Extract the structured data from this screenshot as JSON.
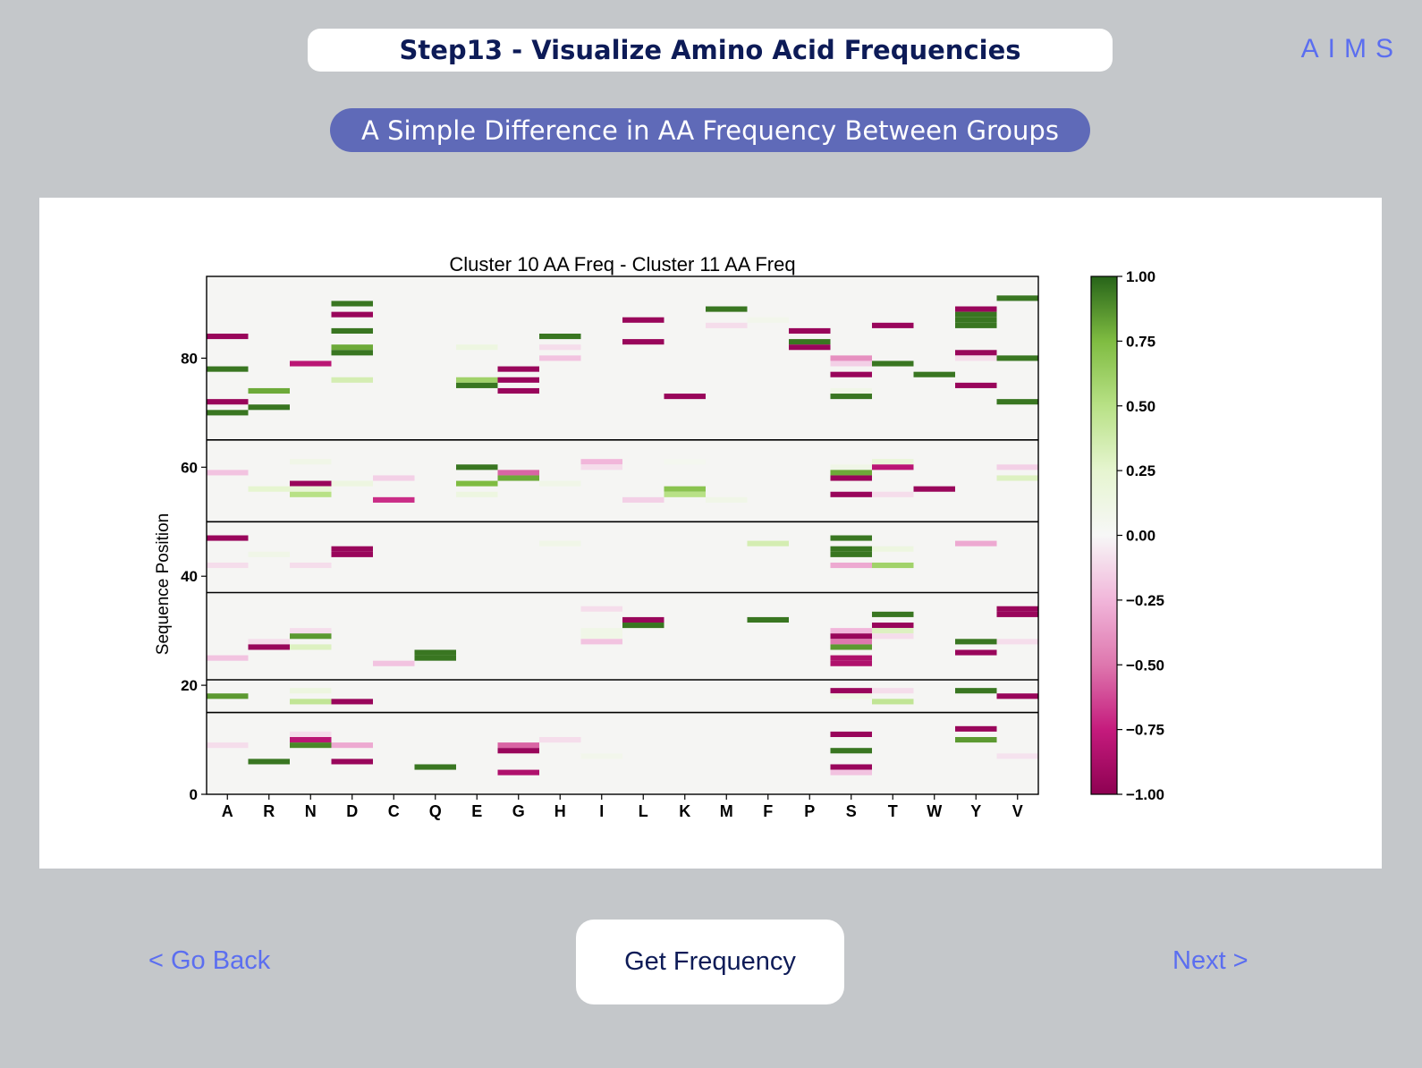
{
  "header": {
    "step_title": "Step13 - Visualize Amino Acid Frequencies",
    "logo_text": "AIMS"
  },
  "subtitle": "A Simple Difference in AA Frequency Between Groups",
  "chart_data": {
    "type": "heatmap",
    "title": "Cluster 10 AA Freq - Cluster 11 AA Freq",
    "xlabel": "",
    "ylabel": "Sequence Position",
    "categories": [
      "A",
      "R",
      "N",
      "D",
      "C",
      "Q",
      "E",
      "G",
      "H",
      "I",
      "L",
      "K",
      "M",
      "F",
      "P",
      "S",
      "T",
      "W",
      "Y",
      "V"
    ],
    "ylim": [
      0,
      95
    ],
    "yticks": [
      0,
      20,
      40,
      60,
      80
    ],
    "region_boundaries": [
      15,
      21,
      37,
      50,
      65
    ],
    "colormap": "PiYG",
    "colorbar": {
      "range": [
        -1.0,
        1.0
      ],
      "ticks": [
        "1.00",
        "0.75",
        "0.50",
        "0.25",
        "0.00",
        "−0.25",
        "−0.50",
        "−0.75",
        "−1.00"
      ]
    },
    "cells": [
      {
        "aa": "A",
        "pos": 84,
        "v": -0.95
      },
      {
        "aa": "A",
        "pos": 78,
        "v": 0.95
      },
      {
        "aa": "A",
        "pos": 72,
        "v": -0.95
      },
      {
        "aa": "A",
        "pos": 70,
        "v": 0.95
      },
      {
        "aa": "A",
        "pos": 59,
        "v": -0.2
      },
      {
        "aa": "A",
        "pos": 47,
        "v": -0.95
      },
      {
        "aa": "A",
        "pos": 42,
        "v": -0.1
      },
      {
        "aa": "A",
        "pos": 25,
        "v": -0.2
      },
      {
        "aa": "A",
        "pos": 18,
        "v": 0.85
      },
      {
        "aa": "A",
        "pos": 9,
        "v": -0.1
      },
      {
        "aa": "R",
        "pos": 74,
        "v": 0.8
      },
      {
        "aa": "R",
        "pos": 71,
        "v": 0.95
      },
      {
        "aa": "R",
        "pos": 56,
        "v": 0.25
      },
      {
        "aa": "R",
        "pos": 44,
        "v": 0.1
      },
      {
        "aa": "R",
        "pos": 28,
        "v": -0.1
      },
      {
        "aa": "R",
        "pos": 27,
        "v": -0.95
      },
      {
        "aa": "R",
        "pos": 6,
        "v": 0.95
      },
      {
        "aa": "N",
        "pos": 79,
        "v": -0.8
      },
      {
        "aa": "N",
        "pos": 61,
        "v": 0.1
      },
      {
        "aa": "N",
        "pos": 57,
        "v": -0.95
      },
      {
        "aa": "N",
        "pos": 56,
        "v": 0.2
      },
      {
        "aa": "N",
        "pos": 55,
        "v": 0.5
      },
      {
        "aa": "N",
        "pos": 42,
        "v": -0.1
      },
      {
        "aa": "N",
        "pos": 30,
        "v": -0.1
      },
      {
        "aa": "N",
        "pos": 29,
        "v": 0.85
      },
      {
        "aa": "N",
        "pos": 27,
        "v": 0.3
      },
      {
        "aa": "N",
        "pos": 19,
        "v": 0.15
      },
      {
        "aa": "N",
        "pos": 17,
        "v": 0.45
      },
      {
        "aa": "N",
        "pos": 11,
        "v": -0.1
      },
      {
        "aa": "N",
        "pos": 10,
        "v": -0.8
      },
      {
        "aa": "N",
        "pos": 9,
        "v": 0.9
      },
      {
        "aa": "D",
        "pos": 90,
        "v": 0.95
      },
      {
        "aa": "D",
        "pos": 88,
        "v": -0.95
      },
      {
        "aa": "D",
        "pos": 85,
        "v": 0.95
      },
      {
        "aa": "D",
        "pos": 82,
        "v": 0.8
      },
      {
        "aa": "D",
        "pos": 81,
        "v": 0.95
      },
      {
        "aa": "D",
        "pos": 76,
        "v": 0.35
      },
      {
        "aa": "D",
        "pos": 57,
        "v": 0.15
      },
      {
        "aa": "D",
        "pos": 45,
        "v": -0.95
      },
      {
        "aa": "D",
        "pos": 44,
        "v": -0.95
      },
      {
        "aa": "D",
        "pos": 17,
        "v": -0.95
      },
      {
        "aa": "D",
        "pos": 9,
        "v": -0.3
      },
      {
        "aa": "D",
        "pos": 6,
        "v": -0.95
      },
      {
        "aa": "C",
        "pos": 58,
        "v": -0.15
      },
      {
        "aa": "C",
        "pos": 54,
        "v": -0.7
      },
      {
        "aa": "C",
        "pos": 24,
        "v": -0.2
      },
      {
        "aa": "Q",
        "pos": 26,
        "v": 0.95
      },
      {
        "aa": "Q",
        "pos": 25,
        "v": 0.95
      },
      {
        "aa": "Q",
        "pos": 5,
        "v": 0.95
      },
      {
        "aa": "E",
        "pos": 82,
        "v": 0.15
      },
      {
        "aa": "E",
        "pos": 76,
        "v": 0.6
      },
      {
        "aa": "E",
        "pos": 75,
        "v": 0.95
      },
      {
        "aa": "E",
        "pos": 60,
        "v": 0.95
      },
      {
        "aa": "E",
        "pos": 57,
        "v": 0.75
      },
      {
        "aa": "E",
        "pos": 55,
        "v": 0.15
      },
      {
        "aa": "G",
        "pos": 78,
        "v": -0.95
      },
      {
        "aa": "G",
        "pos": 76,
        "v": -0.95
      },
      {
        "aa": "G",
        "pos": 74,
        "v": -0.95
      },
      {
        "aa": "G",
        "pos": 59,
        "v": -0.55
      },
      {
        "aa": "G",
        "pos": 58,
        "v": 0.8
      },
      {
        "aa": "G",
        "pos": 9,
        "v": -0.55
      },
      {
        "aa": "G",
        "pos": 8,
        "v": -0.95
      },
      {
        "aa": "G",
        "pos": 4,
        "v": -0.85
      },
      {
        "aa": "H",
        "pos": 84,
        "v": 0.95
      },
      {
        "aa": "H",
        "pos": 82,
        "v": -0.1
      },
      {
        "aa": "H",
        "pos": 80,
        "v": -0.2
      },
      {
        "aa": "H",
        "pos": 57,
        "v": 0.1
      },
      {
        "aa": "H",
        "pos": 46,
        "v": 0.1
      },
      {
        "aa": "H",
        "pos": 10,
        "v": -0.1
      },
      {
        "aa": "I",
        "pos": 61,
        "v": -0.25
      },
      {
        "aa": "I",
        "pos": 60,
        "v": -0.1
      },
      {
        "aa": "I",
        "pos": 34,
        "v": -0.1
      },
      {
        "aa": "I",
        "pos": 30,
        "v": 0.1
      },
      {
        "aa": "I",
        "pos": 29,
        "v": 0.1
      },
      {
        "aa": "I",
        "pos": 28,
        "v": -0.2
      },
      {
        "aa": "I",
        "pos": 7,
        "v": 0.08
      },
      {
        "aa": "L",
        "pos": 87,
        "v": -0.95
      },
      {
        "aa": "L",
        "pos": 83,
        "v": -0.95
      },
      {
        "aa": "L",
        "pos": 54,
        "v": -0.15
      },
      {
        "aa": "L",
        "pos": 32,
        "v": -0.95
      },
      {
        "aa": "L",
        "pos": 31,
        "v": 0.95
      },
      {
        "aa": "K",
        "pos": 73,
        "v": -0.95
      },
      {
        "aa": "K",
        "pos": 61,
        "v": 0.05
      },
      {
        "aa": "K",
        "pos": 56,
        "v": 0.7
      },
      {
        "aa": "K",
        "pos": 55,
        "v": 0.5
      },
      {
        "aa": "M",
        "pos": 89,
        "v": 0.95
      },
      {
        "aa": "M",
        "pos": 86,
        "v": -0.1
      },
      {
        "aa": "M",
        "pos": 54,
        "v": 0.1
      },
      {
        "aa": "F",
        "pos": 87,
        "v": 0.08
      },
      {
        "aa": "F",
        "pos": 46,
        "v": 0.35
      },
      {
        "aa": "F",
        "pos": 32,
        "v": 0.95
      },
      {
        "aa": "P",
        "pos": 85,
        "v": -0.95
      },
      {
        "aa": "P",
        "pos": 83,
        "v": 0.95
      },
      {
        "aa": "P",
        "pos": 82,
        "v": -0.95
      },
      {
        "aa": "S",
        "pos": 80,
        "v": -0.4
      },
      {
        "aa": "S",
        "pos": 79,
        "v": -0.15
      },
      {
        "aa": "S",
        "pos": 77,
        "v": -0.95
      },
      {
        "aa": "S",
        "pos": 74,
        "v": 0.1
      },
      {
        "aa": "S",
        "pos": 73,
        "v": 0.95
      },
      {
        "aa": "S",
        "pos": 60,
        "v": 0.1
      },
      {
        "aa": "S",
        "pos": 59,
        "v": 0.8
      },
      {
        "aa": "S",
        "pos": 58,
        "v": -0.95
      },
      {
        "aa": "S",
        "pos": 55,
        "v": -0.95
      },
      {
        "aa": "S",
        "pos": 47,
        "v": 0.95
      },
      {
        "aa": "S",
        "pos": 45,
        "v": 0.95
      },
      {
        "aa": "S",
        "pos": 44,
        "v": 0.95
      },
      {
        "aa": "S",
        "pos": 42,
        "v": -0.3
      },
      {
        "aa": "S",
        "pos": 30,
        "v": -0.25
      },
      {
        "aa": "S",
        "pos": 29,
        "v": -0.95
      },
      {
        "aa": "S",
        "pos": 28,
        "v": -0.5
      },
      {
        "aa": "S",
        "pos": 27,
        "v": 0.85
      },
      {
        "aa": "S",
        "pos": 25,
        "v": -0.85
      },
      {
        "aa": "S",
        "pos": 24,
        "v": -0.85
      },
      {
        "aa": "S",
        "pos": 19,
        "v": -0.95
      },
      {
        "aa": "S",
        "pos": 18,
        "v": 0.1
      },
      {
        "aa": "S",
        "pos": 11,
        "v": -0.95
      },
      {
        "aa": "S",
        "pos": 8,
        "v": 0.95
      },
      {
        "aa": "S",
        "pos": 5,
        "v": -0.95
      },
      {
        "aa": "S",
        "pos": 4,
        "v": -0.2
      },
      {
        "aa": "T",
        "pos": 86,
        "v": -0.95
      },
      {
        "aa": "T",
        "pos": 79,
        "v": 0.95
      },
      {
        "aa": "T",
        "pos": 61,
        "v": 0.2
      },
      {
        "aa": "T",
        "pos": 60,
        "v": -0.8
      },
      {
        "aa": "T",
        "pos": 55,
        "v": -0.1
      },
      {
        "aa": "T",
        "pos": 45,
        "v": 0.15
      },
      {
        "aa": "T",
        "pos": 42,
        "v": 0.6
      },
      {
        "aa": "T",
        "pos": 33,
        "v": 0.95
      },
      {
        "aa": "T",
        "pos": 31,
        "v": -0.95
      },
      {
        "aa": "T",
        "pos": 30,
        "v": 0.3
      },
      {
        "aa": "T",
        "pos": 29,
        "v": -0.1
      },
      {
        "aa": "T",
        "pos": 19,
        "v": -0.1
      },
      {
        "aa": "T",
        "pos": 17,
        "v": 0.45
      },
      {
        "aa": "W",
        "pos": 77,
        "v": 0.95
      },
      {
        "aa": "W",
        "pos": 56,
        "v": -0.95
      },
      {
        "aa": "Y",
        "pos": 89,
        "v": -0.95
      },
      {
        "aa": "Y",
        "pos": 88,
        "v": 0.95
      },
      {
        "aa": "Y",
        "pos": 87,
        "v": 0.95
      },
      {
        "aa": "Y",
        "pos": 86,
        "v": 0.95
      },
      {
        "aa": "Y",
        "pos": 81,
        "v": -0.95
      },
      {
        "aa": "Y",
        "pos": 80,
        "v": -0.1
      },
      {
        "aa": "Y",
        "pos": 75,
        "v": -0.95
      },
      {
        "aa": "Y",
        "pos": 46,
        "v": -0.3
      },
      {
        "aa": "Y",
        "pos": 28,
        "v": 0.95
      },
      {
        "aa": "Y",
        "pos": 26,
        "v": -0.95
      },
      {
        "aa": "Y",
        "pos": 19,
        "v": 0.95
      },
      {
        "aa": "Y",
        "pos": 12,
        "v": -0.95
      },
      {
        "aa": "Y",
        "pos": 10,
        "v": 0.85
      },
      {
        "aa": "V",
        "pos": 91,
        "v": 0.95
      },
      {
        "aa": "V",
        "pos": 80,
        "v": 0.95
      },
      {
        "aa": "V",
        "pos": 72,
        "v": 0.95
      },
      {
        "aa": "V",
        "pos": 60,
        "v": -0.15
      },
      {
        "aa": "V",
        "pos": 58,
        "v": 0.3
      },
      {
        "aa": "V",
        "pos": 34,
        "v": -0.95
      },
      {
        "aa": "V",
        "pos": 33,
        "v": -0.95
      },
      {
        "aa": "V",
        "pos": 28,
        "v": -0.1
      },
      {
        "aa": "V",
        "pos": 18,
        "v": -0.95
      },
      {
        "aa": "V",
        "pos": 7,
        "v": -0.08
      }
    ]
  },
  "nav": {
    "back_label": "< Go Back",
    "action_label": "Get Frequency",
    "next_label": "Next >"
  }
}
